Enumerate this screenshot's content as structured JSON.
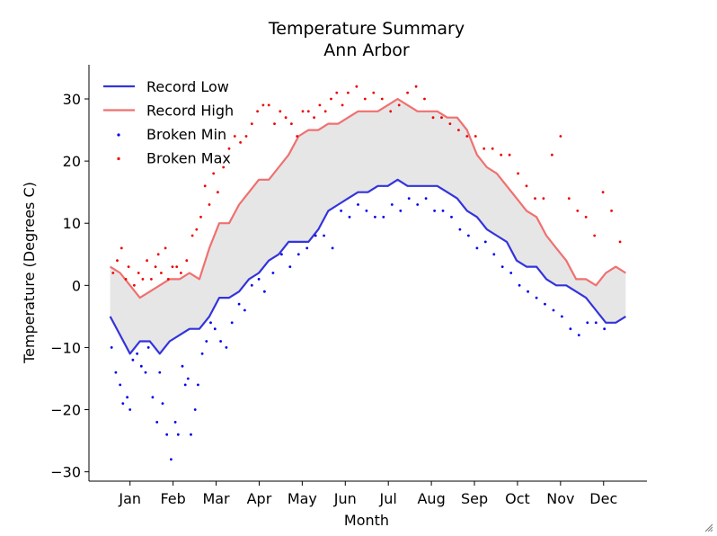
{
  "chart_data": {
    "type": "line",
    "title": "Temperature Summary",
    "subtitle": "Ann Arbor",
    "xlabel": "Month",
    "ylabel": "Temperature (Degrees C)",
    "x_categories": [
      "Jan",
      "Feb",
      "Mar",
      "Apr",
      "May",
      "Jun",
      "Jul",
      "Aug",
      "Sep",
      "Oct",
      "Nov",
      "Dec"
    ],
    "ylim": [
      -31.5,
      35.5
    ],
    "yticks": [
      -30,
      -20,
      -10,
      0,
      10,
      20,
      30
    ],
    "grid": false,
    "legend_position": "top-left",
    "fill_between_color": "#e6e6e6",
    "series": [
      {
        "name": "Record Low",
        "kind": "line",
        "color": "#3333dd",
        "x": [
          1,
          8,
          15,
          22,
          29,
          36,
          43,
          50,
          57,
          64,
          71,
          78,
          85,
          92,
          99,
          106,
          113,
          120,
          127,
          134,
          141,
          148,
          155,
          162,
          169,
          176,
          183,
          190,
          197,
          204,
          211,
          218,
          225,
          232,
          239,
          246,
          253,
          260,
          267,
          274,
          281,
          288,
          295,
          302,
          309,
          316,
          323,
          330,
          337,
          344,
          351,
          358,
          365
        ],
        "values": [
          -5,
          -8,
          -11,
          -9,
          -9,
          -11,
          -9,
          -8,
          -7,
          -7,
          -5,
          -2,
          -2,
          -1,
          1,
          2,
          4,
          5,
          7,
          7,
          7,
          9,
          12,
          13,
          14,
          15,
          15,
          16,
          16,
          17,
          16,
          16,
          16,
          16,
          15,
          14,
          12,
          11,
          9,
          8,
          7,
          4,
          3,
          3,
          1,
          0,
          0,
          -1,
          -2,
          -4,
          -6,
          -6,
          -5
        ]
      },
      {
        "name": "Record High",
        "kind": "line",
        "color": "#f07070",
        "x": [
          1,
          8,
          15,
          22,
          29,
          36,
          43,
          50,
          57,
          64,
          71,
          78,
          85,
          92,
          99,
          106,
          113,
          120,
          127,
          134,
          141,
          148,
          155,
          162,
          169,
          176,
          183,
          190,
          197,
          204,
          211,
          218,
          225,
          232,
          239,
          246,
          253,
          260,
          267,
          274,
          281,
          288,
          295,
          302,
          309,
          316,
          323,
          330,
          337,
          344,
          351,
          358,
          365
        ],
        "values": [
          3,
          2,
          0,
          -2,
          -1,
          0,
          1,
          1,
          2,
          1,
          6,
          10,
          10,
          13,
          15,
          17,
          17,
          19,
          21,
          24,
          25,
          25,
          26,
          26,
          27,
          28,
          28,
          28,
          29,
          30,
          29,
          28,
          28,
          28,
          27,
          27,
          25,
          21,
          19,
          18,
          16,
          14,
          12,
          11,
          8,
          6,
          4,
          1,
          1,
          0,
          2,
          3,
          2
        ]
      },
      {
        "name": "Broken Min",
        "kind": "scatter",
        "color": "#0000ee",
        "x": [
          2,
          5,
          8,
          10,
          13,
          15,
          17,
          20,
          23,
          26,
          28,
          31,
          34,
          36,
          38,
          41,
          44,
          47,
          49,
          52,
          54,
          56,
          58,
          61,
          63,
          66,
          69,
          72,
          75,
          79,
          83,
          87,
          92,
          96,
          101,
          106,
          110,
          116,
          122,
          128,
          134,
          140,
          146,
          152,
          158,
          164,
          170,
          176,
          182,
          188,
          194,
          200,
          206,
          212,
          218,
          224,
          230,
          236,
          242,
          248,
          254,
          260,
          266,
          272,
          278,
          284,
          290,
          296,
          302,
          308,
          314,
          320,
          326,
          332,
          338,
          344,
          350
        ],
        "values": [
          -10,
          -14,
          -16,
          -19,
          -18,
          -20,
          -12,
          -11,
          -13,
          -14,
          -10,
          -18,
          -22,
          -14,
          -19,
          -24,
          -28,
          -22,
          -24,
          -13,
          -16,
          -15,
          -24,
          -20,
          -16,
          -11,
          -9,
          -6,
          -7,
          -9,
          -10,
          -6,
          -3,
          -4,
          0,
          1,
          -1,
          2,
          5,
          3,
          5,
          6,
          8,
          8,
          6,
          12,
          11,
          13,
          12,
          11,
          11,
          13,
          12,
          14,
          13,
          14,
          12,
          12,
          11,
          9,
          8,
          6,
          7,
          5,
          3,
          2,
          0,
          -1,
          -2,
          -3,
          -4,
          -5,
          -7,
          -8,
          -6,
          -6,
          -7
        ]
      },
      {
        "name": "Broken Max",
        "kind": "scatter",
        "color": "#ee0000",
        "x": [
          3,
          6,
          9,
          12,
          14,
          18,
          21,
          24,
          27,
          30,
          33,
          35,
          37,
          40,
          42,
          45,
          48,
          51,
          55,
          59,
          62,
          65,
          68,
          71,
          74,
          77,
          81,
          85,
          89,
          93,
          97,
          101,
          105,
          109,
          113,
          117,
          121,
          125,
          129,
          133,
          137,
          141,
          145,
          149,
          153,
          157,
          161,
          165,
          169,
          175,
          181,
          187,
          193,
          199,
          205,
          211,
          217,
          223,
          229,
          235,
          241,
          247,
          253,
          259,
          265,
          271,
          277,
          283,
          289,
          295,
          301,
          307,
          313,
          319,
          325,
          331,
          337,
          343,
          349,
          355,
          361
        ],
        "values": [
          2,
          4,
          6,
          1,
          3,
          0,
          2,
          1,
          4,
          1,
          3,
          5,
          2,
          6,
          1,
          3,
          3,
          2,
          4,
          8,
          9,
          11,
          16,
          13,
          18,
          15,
          19,
          22,
          24,
          23,
          24,
          26,
          28,
          29,
          29,
          26,
          28,
          27,
          26,
          24,
          28,
          28,
          27,
          29,
          28,
          30,
          31,
          29,
          31,
          32,
          30,
          31,
          30,
          28,
          29,
          31,
          32,
          30,
          27,
          27,
          26,
          25,
          24,
          24,
          22,
          22,
          21,
          21,
          18,
          16,
          14,
          14,
          21,
          24,
          14,
          12,
          11,
          8,
          15,
          12,
          7
        ]
      }
    ],
    "legend": [
      "Record Low",
      "Record High",
      "Broken Min",
      "Broken Max"
    ]
  },
  "icons": {
    "corner": "resize-grip-icon"
  }
}
